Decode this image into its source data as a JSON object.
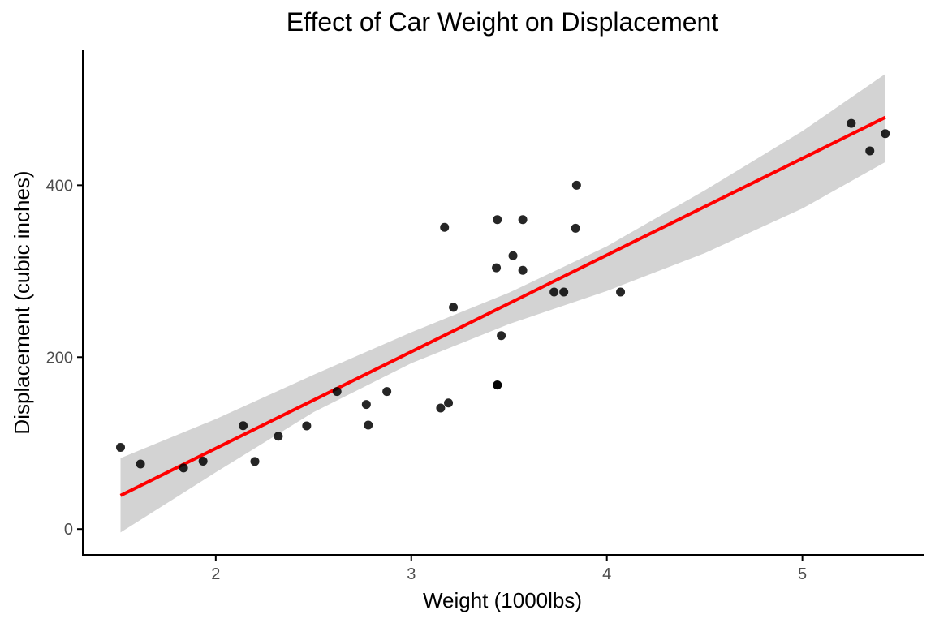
{
  "chart_data": {
    "type": "scatter",
    "title": "Effect of Car Weight on Displacement",
    "xlabel": "Weight (1000lbs)",
    "ylabel": "Displacement (cubic inches)",
    "xlim": [
      1.32,
      5.62
    ],
    "ylim": [
      -30,
      557
    ],
    "x_ticks": [
      2,
      3,
      4,
      5
    ],
    "y_ticks": [
      0,
      200,
      400
    ],
    "grid": false,
    "legend": "none",
    "points": [
      {
        "x": 2.62,
        "y": 160.0
      },
      {
        "x": 2.875,
        "y": 160.0
      },
      {
        "x": 2.32,
        "y": 108.0
      },
      {
        "x": 3.215,
        "y": 258.0
      },
      {
        "x": 3.44,
        "y": 360.0
      },
      {
        "x": 3.46,
        "y": 225.0
      },
      {
        "x": 3.57,
        "y": 360.0
      },
      {
        "x": 3.19,
        "y": 146.7
      },
      {
        "x": 3.15,
        "y": 140.8
      },
      {
        "x": 3.44,
        "y": 167.6
      },
      {
        "x": 3.44,
        "y": 167.6
      },
      {
        "x": 4.07,
        "y": 275.8
      },
      {
        "x": 3.73,
        "y": 275.8
      },
      {
        "x": 3.78,
        "y": 275.8
      },
      {
        "x": 5.25,
        "y": 472.0
      },
      {
        "x": 5.424,
        "y": 460.0
      },
      {
        "x": 5.345,
        "y": 440.0
      },
      {
        "x": 2.2,
        "y": 78.7
      },
      {
        "x": 1.615,
        "y": 75.7
      },
      {
        "x": 1.835,
        "y": 71.1
      },
      {
        "x": 2.465,
        "y": 120.1
      },
      {
        "x": 3.52,
        "y": 318.0
      },
      {
        "x": 3.435,
        "y": 304.0
      },
      {
        "x": 3.84,
        "y": 350.0
      },
      {
        "x": 3.845,
        "y": 400.0
      },
      {
        "x": 1.935,
        "y": 79.0
      },
      {
        "x": 2.14,
        "y": 120.3
      },
      {
        "x": 1.513,
        "y": 95.1
      },
      {
        "x": 3.17,
        "y": 351.0
      },
      {
        "x": 2.77,
        "y": 145.0
      },
      {
        "x": 3.57,
        "y": 301.0
      },
      {
        "x": 2.78,
        "y": 121.0
      }
    ],
    "fit": {
      "method": "linear",
      "intercept": -131.15,
      "slope": 112.48,
      "x_range": [
        1.513,
        5.424
      ],
      "ci_band": {
        "x": [
          1.513,
          2.0,
          2.5,
          3.0,
          3.5,
          4.0,
          4.5,
          5.0,
          5.424
        ],
        "lower": [
          -4.0,
          66.0,
          136.0,
          193.0,
          238.5,
          277.0,
          321.0,
          373.0,
          427.0
        ],
        "upper": [
          82.5,
          128.0,
          179.5,
          229.0,
          275.0,
          329.0,
          394.0,
          463.0,
          529.5
        ]
      }
    },
    "colors": {
      "points": "#000000",
      "line": "#ff0000",
      "band": "#d3d3d3",
      "axis": "#000000",
      "tick_label": "#4d4d4d"
    }
  }
}
